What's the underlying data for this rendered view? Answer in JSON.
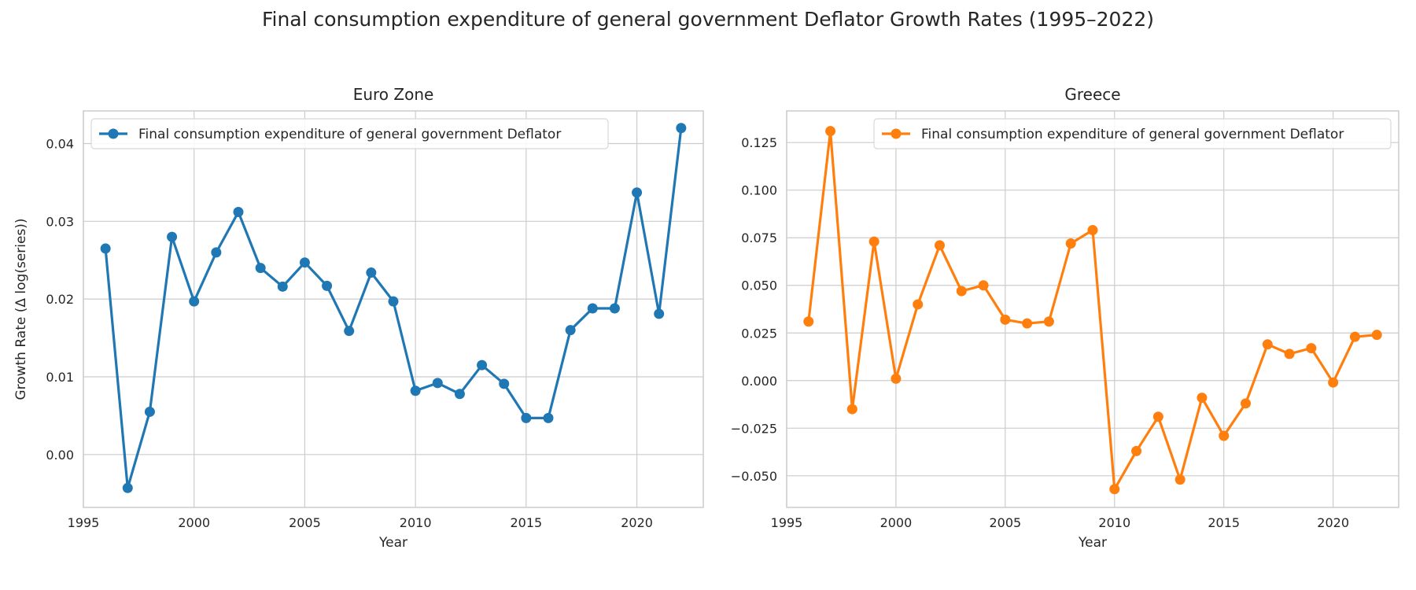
{
  "title": "Final consumption expenditure of general government Deflator Growth Rates (1995–2022)",
  "chart_data": [
    {
      "type": "line",
      "title": "Euro Zone",
      "xlabel": "Year",
      "ylabel": "Growth Rate (Δ log(series))",
      "color": "#1f77b4",
      "xlim": [
        1995,
        2023
      ],
      "ylim": [
        -0.0068,
        0.0442
      ],
      "xticks": [
        1995,
        2000,
        2005,
        2010,
        2015,
        2020
      ],
      "yticks": [
        0.0,
        0.01,
        0.02,
        0.03,
        0.04
      ],
      "ytick_labels": [
        "0.00",
        "0.01",
        "0.02",
        "0.03",
        "0.04"
      ],
      "legend": "upper-left",
      "series": [
        {
          "name": "Final consumption expenditure of general government Deflator",
          "x": [
            1996,
            1997,
            1998,
            1999,
            2000,
            2001,
            2002,
            2003,
            2004,
            2005,
            2006,
            2007,
            2008,
            2009,
            2010,
            2011,
            2012,
            2013,
            2014,
            2015,
            2016,
            2017,
            2018,
            2019,
            2020,
            2021,
            2022
          ],
          "y": [
            0.0265,
            -0.0043,
            0.0055,
            0.028,
            0.0197,
            0.026,
            0.0312,
            0.024,
            0.0216,
            0.0247,
            0.0217,
            0.0159,
            0.0234,
            0.0197,
            0.0082,
            0.0092,
            0.0078,
            0.0115,
            0.0091,
            0.0047,
            0.0047,
            0.016,
            0.0188,
            0.0188,
            0.0337,
            0.0181,
            0.042
          ]
        }
      ]
    },
    {
      "type": "line",
      "title": "Greece",
      "xlabel": "Year",
      "ylabel": "",
      "color": "#ff7f0e",
      "xlim": [
        1995,
        2023
      ],
      "ylim": [
        -0.0666,
        0.1416
      ],
      "xticks": [
        1995,
        2000,
        2005,
        2010,
        2015,
        2020
      ],
      "yticks": [
        -0.05,
        -0.025,
        0.0,
        0.025,
        0.05,
        0.075,
        0.1,
        0.125
      ],
      "ytick_labels": [
        "−0.050",
        "−0.025",
        "0.000",
        "0.025",
        "0.050",
        "0.075",
        "0.100",
        "0.125"
      ],
      "legend": "upper-right",
      "series": [
        {
          "name": "Final consumption expenditure of general government Deflator",
          "x": [
            1996,
            1997,
            1998,
            1999,
            2000,
            2001,
            2002,
            2003,
            2004,
            2005,
            2006,
            2007,
            2008,
            2009,
            2010,
            2011,
            2012,
            2013,
            2014,
            2015,
            2016,
            2017,
            2018,
            2019,
            2020,
            2021,
            2022
          ],
          "y": [
            0.031,
            0.131,
            -0.015,
            0.073,
            0.001,
            0.04,
            0.071,
            0.047,
            0.05,
            0.032,
            0.03,
            0.031,
            0.072,
            0.079,
            -0.057,
            -0.037,
            -0.019,
            -0.052,
            -0.009,
            -0.029,
            -0.012,
            0.019,
            0.014,
            0.017,
            -0.001,
            0.023,
            0.024
          ]
        }
      ]
    }
  ]
}
